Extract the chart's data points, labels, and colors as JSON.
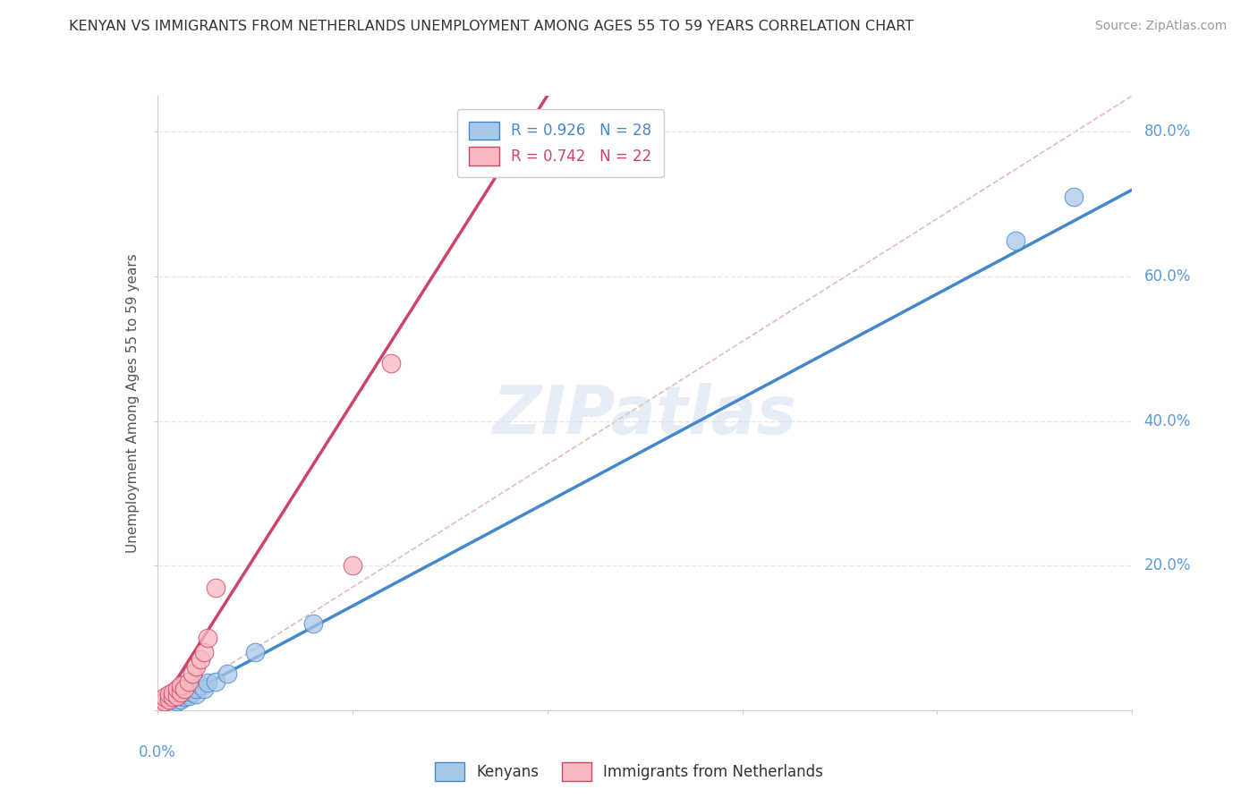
{
  "title": "KENYAN VS IMMIGRANTS FROM NETHERLANDS UNEMPLOYMENT AMONG AGES 55 TO 59 YEARS CORRELATION CHART",
  "source": "Source: ZipAtlas.com",
  "ylabel": "Unemployment Among Ages 55 to 59 years",
  "xlim": [
    0.0,
    0.25
  ],
  "ylim": [
    0.0,
    0.85
  ],
  "xticks": [
    0.0,
    0.05,
    0.1,
    0.15,
    0.2,
    0.25
  ],
  "yticks": [
    0.0,
    0.2,
    0.4,
    0.6,
    0.8
  ],
  "legend_r1": "R = 0.926   N = 28",
  "legend_r2": "R = 0.742   N = 22",
  "watermark": "ZIPatlas",
  "kenyan_color": "#a8c8e8",
  "netherlands_color": "#f8b8c0",
  "kenyan_line_color": "#4488cc",
  "netherlands_line_color": "#cc4466",
  "diagonal_color": "#ddaaaa",
  "bg_color": "#ffffff",
  "grid_color": "#e8e8e8",
  "title_color": "#333333",
  "tick_color": "#5b9bd5",
  "kenyan_scatter_x": [
    0.0,
    0.001,
    0.002,
    0.002,
    0.003,
    0.003,
    0.004,
    0.004,
    0.005,
    0.005,
    0.006,
    0.006,
    0.007,
    0.007,
    0.008,
    0.008,
    0.009,
    0.01,
    0.01,
    0.011,
    0.012,
    0.013,
    0.015,
    0.018,
    0.025,
    0.04,
    0.22,
    0.235
  ],
  "kenyan_scatter_y": [
    0.005,
    0.008,
    0.01,
    0.015,
    0.008,
    0.012,
    0.01,
    0.018,
    0.012,
    0.02,
    0.015,
    0.022,
    0.018,
    0.025,
    0.02,
    0.028,
    0.025,
    0.022,
    0.03,
    0.035,
    0.03,
    0.038,
    0.04,
    0.05,
    0.08,
    0.12,
    0.65,
    0.71
  ],
  "neth_scatter_x": [
    0.0,
    0.001,
    0.002,
    0.002,
    0.003,
    0.003,
    0.004,
    0.004,
    0.005,
    0.005,
    0.006,
    0.006,
    0.007,
    0.008,
    0.009,
    0.01,
    0.011,
    0.012,
    0.013,
    0.015,
    0.05,
    0.06
  ],
  "neth_scatter_y": [
    0.005,
    0.01,
    0.012,
    0.018,
    0.015,
    0.022,
    0.018,
    0.025,
    0.02,
    0.03,
    0.025,
    0.035,
    0.03,
    0.04,
    0.05,
    0.06,
    0.07,
    0.08,
    0.1,
    0.17,
    0.2,
    0.48
  ],
  "kenyan_trend_x0": 0.0,
  "kenyan_trend_y0": 0.0,
  "kenyan_trend_x1": 0.25,
  "kenyan_trend_y1": 0.72,
  "neth_trend_x0": 0.0,
  "neth_trend_y0": 0.0,
  "neth_trend_x1": 0.1,
  "neth_trend_y1": 0.85
}
